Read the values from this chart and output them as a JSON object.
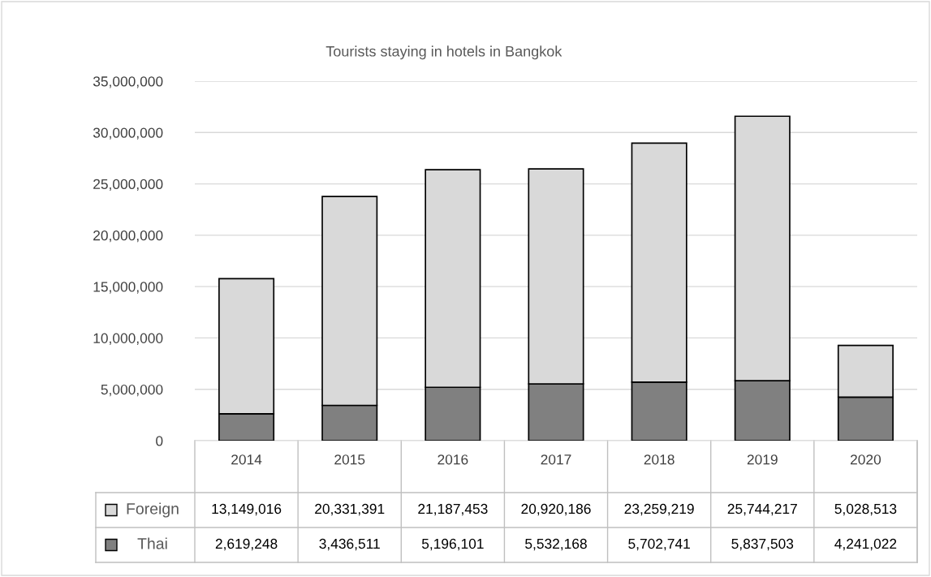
{
  "chart_data": {
    "type": "bar",
    "title": "Tourists staying in hotels in Bangkok",
    "categories": [
      "2014",
      "2015",
      "2016",
      "2017",
      "2018",
      "2019",
      "2020"
    ],
    "series": [
      {
        "name": "Thai",
        "color": "#808080",
        "values": [
          2619248,
          3436511,
          5196101,
          5532168,
          5702741,
          5837503,
          4241022
        ],
        "value_labels": [
          "2,619,248",
          "3,436,511",
          "5,196,101",
          "5,532,168",
          "5,702,741",
          "5,837,503",
          "4,241,022"
        ]
      },
      {
        "name": "Foreign",
        "color": "#d9d9d9",
        "values": [
          13149016,
          20331391,
          21187453,
          20920186,
          23259219,
          25744217,
          5028513
        ],
        "value_labels": [
          "13,149,016",
          "20,331,391",
          "21,187,453",
          "20,920,186",
          "23,259,219",
          "25,744,217",
          "5,028,513"
        ]
      }
    ],
    "stacked": true,
    "legend": "bottom",
    "grid": "y",
    "ylim": [
      0,
      35000000
    ],
    "yticks": [
      {
        "value": 0,
        "label": "0"
      },
      {
        "value": 5000000,
        "label": "5,000,000"
      },
      {
        "value": 10000000,
        "label": "10,000,000"
      },
      {
        "value": 15000000,
        "label": "15,000,000"
      },
      {
        "value": 20000000,
        "label": "20,000,000"
      },
      {
        "value": 25000000,
        "label": "25,000,000"
      },
      {
        "value": 30000000,
        "label": "30,000,000"
      },
      {
        "value": 35000000,
        "label": "35,000,000"
      }
    ]
  }
}
